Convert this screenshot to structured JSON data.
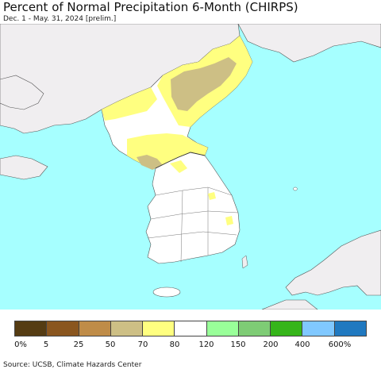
{
  "title": "Percent of Normal Precipitation 6-Month (CHIRPS)",
  "subtitle": "Dec. 1 - May. 31, 2024 [prelim.]",
  "source": "Source: UCSB, Climate Hazards Center",
  "colors": {
    "water": "#a6ffff",
    "land_outside": "#f0eef0",
    "normal": "#ffffff",
    "yellow": "#ffff80",
    "tan": "#cdbf85",
    "border": "#444444"
  },
  "legend": {
    "colors": [
      "#553c13",
      "#8a561f",
      "#bf8c48",
      "#cdbf85",
      "#ffff80",
      "#ffffff",
      "#99ff99",
      "#7ecc75",
      "#36b51a",
      "#80c8ff",
      "#2079c0"
    ],
    "ticks": [
      "0%",
      "5",
      "25",
      "50",
      "70",
      "80",
      "120",
      "150",
      "200",
      "400",
      "600%"
    ]
  }
}
